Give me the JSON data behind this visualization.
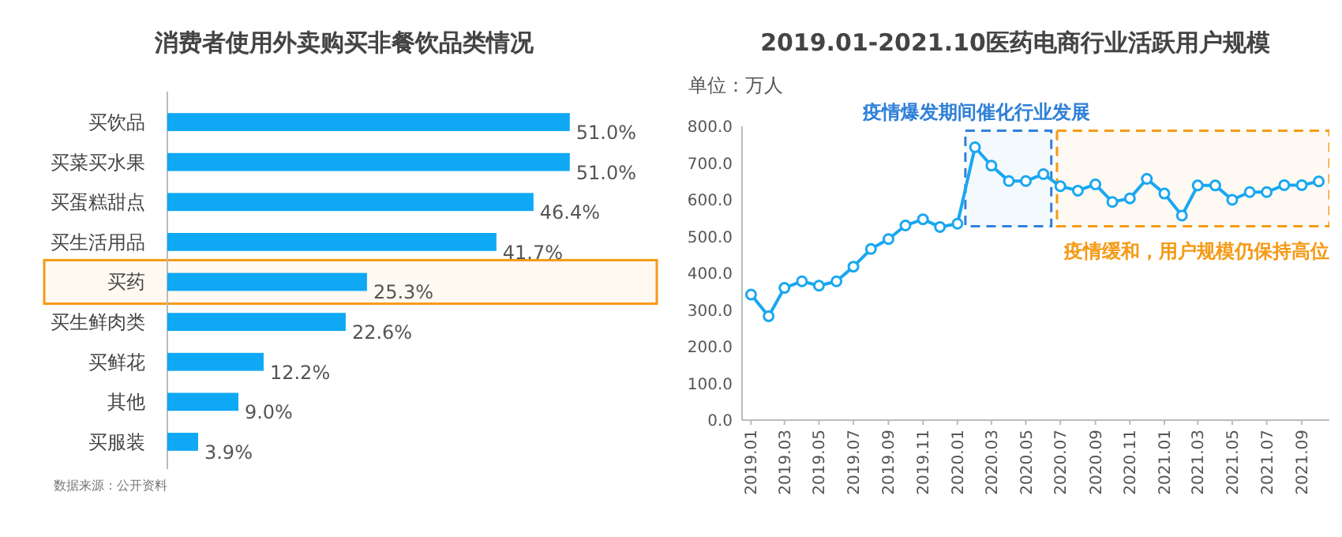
{
  "chart_data": [
    {
      "type": "bar",
      "orientation": "horizontal",
      "title": "消费者使用外卖购买非餐饮品类情况",
      "categories": [
        "买饮品",
        "买菜买水果",
        "买蛋糕甜点",
        "买生活用品",
        "买药",
        "买生鲜肉类",
        "买鲜花",
        "其他",
        "买服装"
      ],
      "values": [
        51.0,
        51.0,
        46.4,
        41.7,
        25.3,
        22.6,
        12.2,
        9.0,
        3.9
      ],
      "color": "#0ea8f5",
      "value_labels": [
        "51.0%",
        "51.0%",
        "46.4%",
        "41.7%",
        "25.3%",
        "22.6%",
        "12.2%",
        "9.0%",
        "3.9%"
      ],
      "bands": [
        {
          "axis": "y",
          "from": "买药",
          "to": "买药",
          "color": "#f59a16"
        }
      ],
      "annotations": [
        "数据来源：公开资料"
      ]
    },
    {
      "type": "line",
      "title": "2019.01-2021.10医药电商行业活跃用户规模",
      "ylabel": "单位：万人",
      "x": [
        "2019-01",
        "2019-02",
        "2019-03",
        "2019-04",
        "2019-05",
        "2019-06",
        "2019-07",
        "2019-08",
        "2019-09",
        "2019-10",
        "2019-11",
        "2019-12",
        "2020-01",
        "2020-02",
        "2020-03",
        "2020-04",
        "2020-05",
        "2020-06",
        "2020-07",
        "2020-08",
        "2020-09",
        "2020-10",
        "2020-11",
        "2020-12",
        "2021-01",
        "2021-02",
        "2021-03",
        "2021-04",
        "2021-05",
        "2021-06",
        "2021-07",
        "2021-08",
        "2021-09",
        "2021-10"
      ],
      "series": [
        {
          "color": "#1aa7f0",
          "values": [
            342,
            283,
            360,
            378,
            366,
            378,
            418,
            466,
            493,
            530,
            547,
            526,
            535,
            743,
            693,
            651,
            651,
            670,
            637,
            625,
            642,
            594,
            604,
            657,
            617,
            557,
            639,
            639,
            600,
            621,
            621,
            640,
            640,
            650
          ]
        }
      ],
      "xlim": [
        "2018-12-16",
        "2021-10-31"
      ],
      "ylim": [
        0,
        800
      ],
      "yticks": [
        {
          "value": 0,
          "label": "0.0"
        },
        {
          "value": 100,
          "label": "100.0"
        },
        {
          "value": 200,
          "label": "200.0"
        },
        {
          "value": 300,
          "label": "300.0"
        },
        {
          "value": 400,
          "label": "400.0"
        },
        {
          "value": 500,
          "label": "500.0"
        },
        {
          "value": 600,
          "label": "600.0"
        },
        {
          "value": 700,
          "label": "700.0"
        },
        {
          "value": 800,
          "label": "800.0"
        }
      ],
      "xticks": [
        {
          "value": "2019-01",
          "label": "2019.01"
        },
        {
          "value": "2019-03",
          "label": "2019.03"
        },
        {
          "value": "2019-05",
          "label": "2019.05"
        },
        {
          "value": "2019-07",
          "label": "2019.07"
        },
        {
          "value": "2019-09",
          "label": "2019.09"
        },
        {
          "value": "2019-11",
          "label": "2019.11"
        },
        {
          "value": "2020-01",
          "label": "2020.01"
        },
        {
          "value": "2020-03",
          "label": "2020.03"
        },
        {
          "value": "2020-05",
          "label": "2020.05"
        },
        {
          "value": "2020-07",
          "label": "2020.07"
        },
        {
          "value": "2020-09",
          "label": "2020.09"
        },
        {
          "value": "2020-11",
          "label": "2020.11"
        },
        {
          "value": "2021-01",
          "label": "2021.01"
        },
        {
          "value": "2021-03",
          "label": "2021.03"
        },
        {
          "value": "2021-05",
          "label": "2021.05"
        },
        {
          "value": "2021-07",
          "label": "2021.07"
        },
        {
          "value": "2021-09",
          "label": "2021.09"
        }
      ],
      "bands": [
        {
          "axis": "x",
          "from": "2020-01-15",
          "to": "2020-06-15",
          "label": "疫情爆发期间催化行业发展",
          "color": "#2f80d8"
        },
        {
          "axis": "x",
          "from": "2020-06-25",
          "to": "2021-10-20",
          "label": "疫情缓和，用户规模仍保持高位",
          "color": "#f59a16"
        }
      ],
      "marker": "circle",
      "line_style": "solid"
    }
  ]
}
